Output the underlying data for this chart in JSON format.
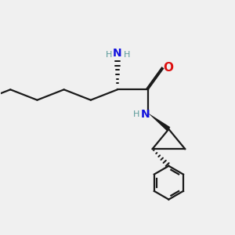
{
  "bg_color": "#f0f0f0",
  "bond_color": "#1a1a1a",
  "N_color": "#1010dd",
  "O_color": "#dd1010",
  "NH_color": "#5a9a9a",
  "line_width": 1.6,
  "font_size_atom": 10,
  "font_size_H": 8,
  "xlim": [
    0,
    10
  ],
  "ylim": [
    0,
    10
  ]
}
